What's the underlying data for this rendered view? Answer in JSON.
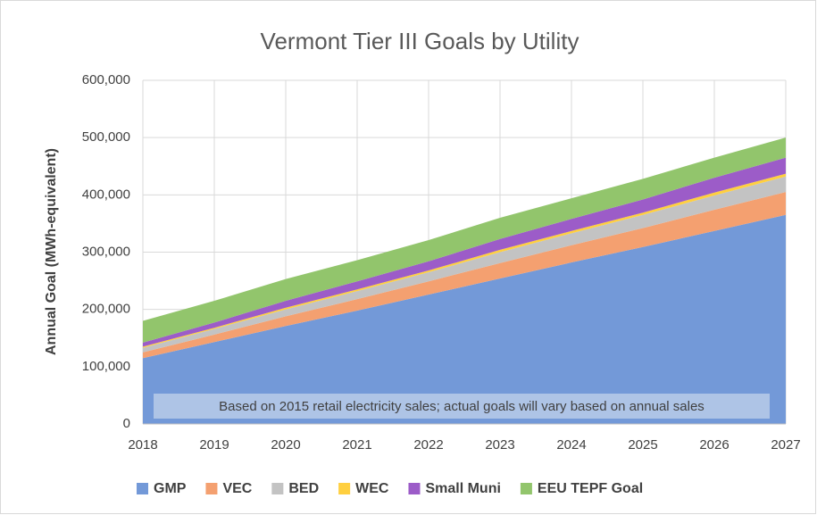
{
  "chart_data": {
    "type": "stacked_area",
    "title": "Vermont Tier III Goals by Utility",
    "y_label": "Annual  Goal (MWh-equivalent)",
    "annotation": "Based on 2015 retail electricity sales; actual goals will vary based on annual sales",
    "x": [
      2018,
      2019,
      2020,
      2021,
      2022,
      2023,
      2024,
      2025,
      2026,
      2027
    ],
    "xlim": [
      2018,
      2027
    ],
    "xticks": [
      2018,
      2019,
      2020,
      2021,
      2022,
      2023,
      2024,
      2025,
      2026,
      2027
    ],
    "ylim": [
      0,
      600000
    ],
    "yticks": [
      0,
      {
        "value": 100000,
        "label": "100,000"
      },
      {
        "value": 200000,
        "label": "200,000"
      },
      {
        "value": 300000,
        "label": "300,000"
      },
      {
        "value": 400000,
        "label": "400,000"
      },
      {
        "value": 500000,
        "label": "500,000"
      },
      {
        "value": 600000,
        "label": "600,000"
      }
    ],
    "grid": true,
    "legend": "bottom",
    "series": [
      {
        "name": "GMP",
        "color": "#7399d8",
        "values": [
          115000,
          143000,
          171000,
          198000,
          226000,
          254000,
          282000,
          309000,
          337000,
          365000
        ]
      },
      {
        "name": "VEC",
        "color": "#f4a070",
        "values": [
          10000,
          13000,
          17000,
          20000,
          23000,
          27000,
          30000,
          33000,
          37000,
          40000
        ]
      },
      {
        "name": "BED",
        "color": "#c3c3c3",
        "values": [
          8000,
          10000,
          12000,
          14000,
          16000,
          19000,
          21000,
          23000,
          25000,
          27000
        ]
      },
      {
        "name": "WEC",
        "color": "#ffcf3f",
        "values": [
          2000,
          2000,
          3000,
          3000,
          3000,
          4000,
          4000,
          4000,
          5000,
          5000
        ]
      },
      {
        "name": "Small Muni",
        "color": "#9c5cc8",
        "values": [
          7000,
          9000,
          12000,
          14000,
          16000,
          19000,
          21000,
          23000,
          26000,
          28000
        ]
      },
      {
        "name": "EEU TEPF Goal",
        "color": "#92c56c",
        "values": [
          38000,
          38000,
          38000,
          37000,
          37000,
          37000,
          36000,
          36000,
          35000,
          35000
        ]
      }
    ]
  }
}
